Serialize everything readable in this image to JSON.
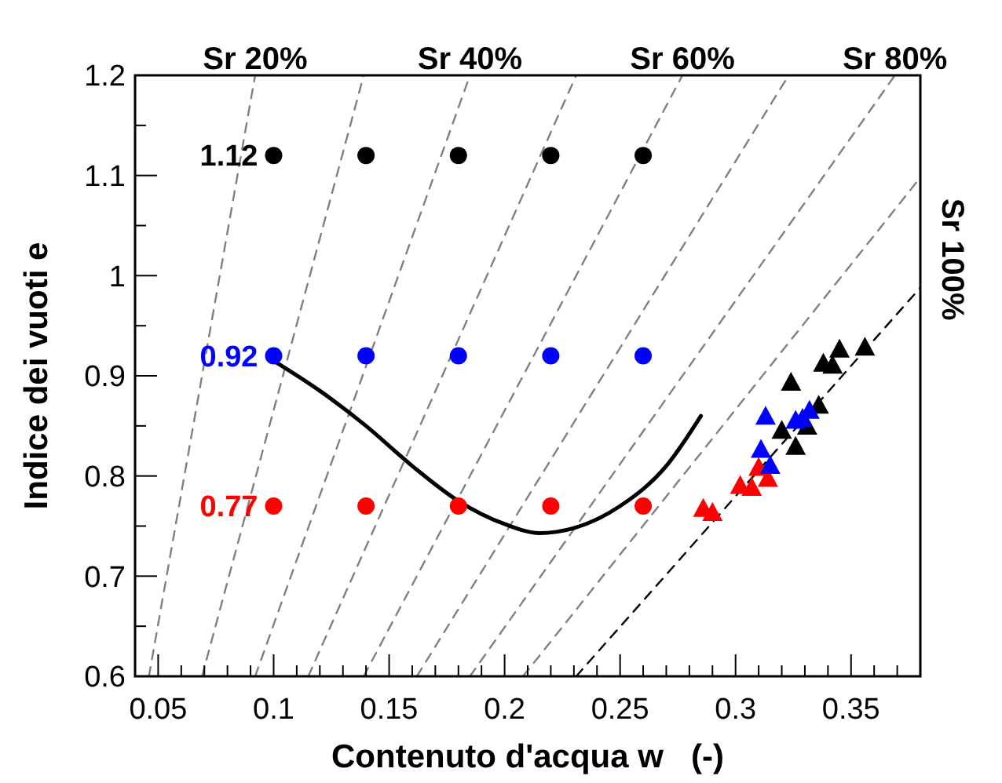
{
  "chart_data": {
    "type": "scatter",
    "xlabel": "Contenuto d'acqua w   (-)",
    "ylabel": "Indice dei vuoti e",
    "xlim": [
      0.04,
      0.38
    ],
    "ylim": [
      0.6,
      1.2
    ],
    "xticks": [
      {
        "value": 0.04,
        "label": null
      },
      0.05,
      {
        "value": 0.06,
        "label": null
      },
      {
        "value": 0.07,
        "label": null
      },
      {
        "value": 0.08,
        "label": null
      },
      {
        "value": 0.09,
        "label": null
      },
      0.1,
      {
        "value": 0.11,
        "label": null
      },
      {
        "value": 0.12,
        "label": null
      },
      {
        "value": 0.13,
        "label": null
      },
      {
        "value": 0.14,
        "label": null
      },
      0.15,
      {
        "value": 0.16,
        "label": null
      },
      {
        "value": 0.17,
        "label": null
      },
      {
        "value": 0.18,
        "label": null
      },
      {
        "value": 0.19,
        "label": null
      },
      0.2,
      {
        "value": 0.21,
        "label": null
      },
      {
        "value": 0.22,
        "label": null
      },
      {
        "value": 0.23,
        "label": null
      },
      {
        "value": 0.24,
        "label": null
      },
      0.25,
      {
        "value": 0.26,
        "label": null
      },
      {
        "value": 0.27,
        "label": null
      },
      {
        "value": 0.28,
        "label": null
      },
      {
        "value": 0.29,
        "label": null
      },
      0.3,
      {
        "value": 0.31,
        "label": null
      },
      {
        "value": 0.32,
        "label": null
      },
      {
        "value": 0.33,
        "label": null
      },
      {
        "value": 0.34,
        "label": null
      },
      0.35,
      {
        "value": 0.36,
        "label": null
      },
      {
        "value": 0.37,
        "label": null
      }
    ],
    "yticks": [
      0.6,
      {
        "value": 0.65,
        "label": null
      },
      0.7,
      {
        "value": 0.75,
        "label": null
      },
      0.8,
      {
        "value": 0.85,
        "label": null
      },
      0.9,
      {
        "value": 0.95,
        "label": null
      },
      1,
      {
        "value": 1.05,
        "label": null
      },
      1.1,
      {
        "value": 1.15,
        "label": null
      },
      1.2
    ],
    "grid": false,
    "annotations": [
      {
        "text": "Sr 20%",
        "x": 0.092,
        "y": 1.2
      },
      {
        "text": "Sr 40%",
        "x": 0.185,
        "y": 1.2
      },
      {
        "text": "Sr 60%",
        "x": 0.277,
        "y": 1.2
      },
      {
        "text": "Sr 80%",
        "x": 0.369,
        "y": 1.2
      },
      {
        "text": "Sr 100%",
        "x": 0.38,
        "y": 0.988
      }
    ],
    "series": [
      {
        "type": "line",
        "color": "#808080",
        "line_style": "dashed",
        "x": [
          0.046,
          0.092
        ],
        "values": [
          0.6,
          1.2
        ]
      },
      {
        "type": "line",
        "color": "#808080",
        "line_style": "dashed",
        "x": [
          0.069,
          0.139
        ],
        "values": [
          0.6,
          1.2
        ]
      },
      {
        "type": "line",
        "color": "#808080",
        "line_style": "dashed",
        "x": [
          0.092,
          0.185
        ],
        "values": [
          0.6,
          1.2
        ]
      },
      {
        "type": "line",
        "color": "#808080",
        "line_style": "dashed",
        "x": [
          0.115,
          0.231
        ],
        "values": [
          0.6,
          1.2
        ]
      },
      {
        "type": "line",
        "color": "#808080",
        "line_style": "dashed",
        "x": [
          0.139,
          0.277
        ],
        "values": [
          0.6,
          1.2
        ]
      },
      {
        "type": "line",
        "color": "#808080",
        "line_style": "dashed",
        "x": [
          0.162,
          0.323
        ],
        "values": [
          0.6,
          1.2
        ]
      },
      {
        "type": "line",
        "color": "#808080",
        "line_style": "dashed",
        "x": [
          0.185,
          0.369
        ],
        "values": [
          0.6,
          1.2
        ]
      },
      {
        "type": "line",
        "color": "#808080",
        "line_style": "dashed",
        "x": [
          0.208,
          0.38
        ],
        "values": [
          0.6,
          1.098
        ]
      },
      {
        "type": "line",
        "color": "#000000",
        "line_style": "dashed",
        "x": [
          0.231,
          0.38
        ],
        "values": [
          0.6,
          0.988
        ]
      },
      {
        "type": "line",
        "color": "#000000",
        "line_style": "solid",
        "x": [
          0.1,
          0.12,
          0.14,
          0.16,
          0.18,
          0.2,
          0.215,
          0.23,
          0.25,
          0.27,
          0.285
        ],
        "values": [
          0.915,
          0.885,
          0.85,
          0.81,
          0.775,
          0.752,
          0.743,
          0.748,
          0.77,
          0.81,
          0.86
        ]
      },
      {
        "name": "1.12",
        "color": "#000000",
        "marker": "circle",
        "x": [
          0.1,
          0.14,
          0.18,
          0.22,
          0.26
        ],
        "values": [
          1.12,
          1.12,
          1.12,
          1.12,
          1.12
        ]
      },
      {
        "name": "0.92",
        "color": "#0000ff",
        "marker": "circle",
        "x": [
          0.1,
          0.14,
          0.18,
          0.22,
          0.26
        ],
        "values": [
          0.92,
          0.92,
          0.92,
          0.92,
          0.92
        ]
      },
      {
        "name": "0.77",
        "color": "#ff0000",
        "marker": "circle",
        "x": [
          0.1,
          0.14,
          0.18,
          0.22,
          0.26
        ],
        "values": [
          0.77,
          0.77,
          0.77,
          0.77,
          0.77
        ]
      },
      {
        "color": "#000000",
        "marker": "triangle",
        "x": [
          0.324,
          0.32,
          0.326,
          0.331,
          0.336,
          0.338,
          0.342,
          0.345,
          0.356
        ],
        "values": [
          0.893,
          0.845,
          0.829,
          0.849,
          0.87,
          0.912,
          0.91,
          0.926,
          0.928
        ]
      },
      {
        "color": "#ff0000",
        "marker": "triangle",
        "x": [
          0.286,
          0.29,
          0.302,
          0.307,
          0.31,
          0.314
        ],
        "values": [
          0.767,
          0.763,
          0.79,
          0.788,
          0.808,
          0.797
        ]
      },
      {
        "color": "#0000ff",
        "marker": "triangle",
        "x": [
          0.313,
          0.311,
          0.315,
          0.326,
          0.329,
          0.332
        ],
        "values": [
          0.859,
          0.826,
          0.81,
          0.855,
          0.857,
          0.865
        ]
      }
    ]
  }
}
